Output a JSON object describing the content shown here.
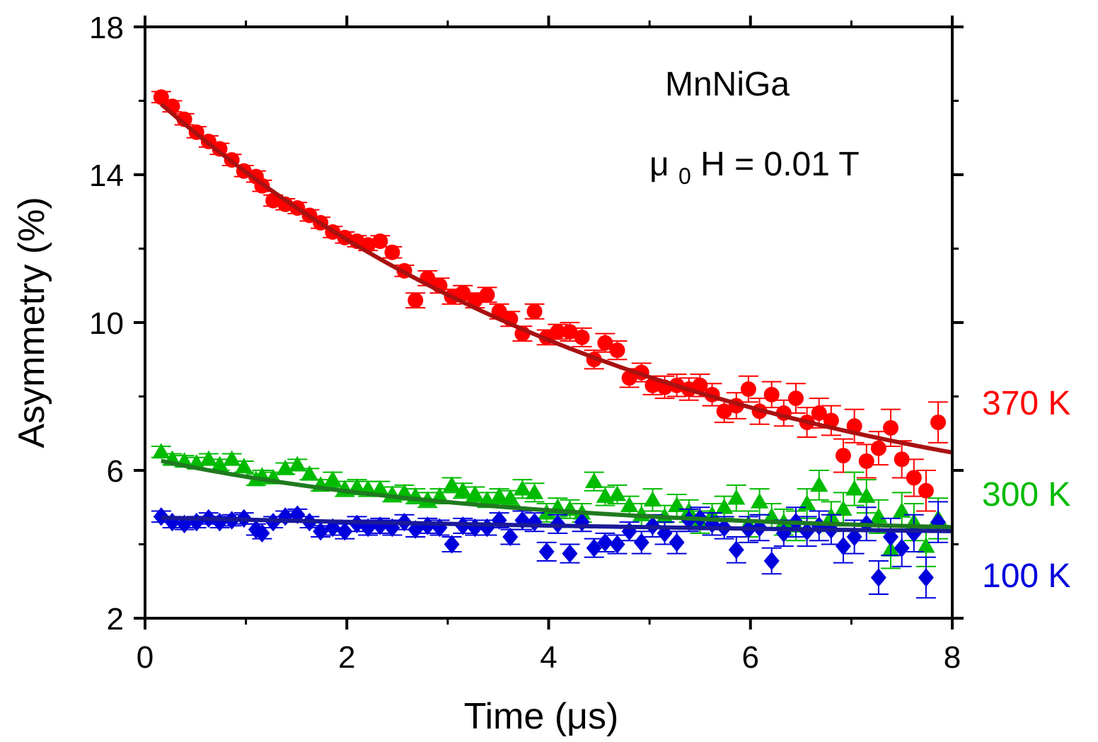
{
  "chart_data": {
    "type": "scatter",
    "title": "",
    "xlabel": "Time (μs)",
    "ylabel": "Asymmetry (%)",
    "xlim": [
      0,
      8
    ],
    "ylim": [
      2,
      18
    ],
    "xticks": [
      "0",
      "2",
      "4",
      "6",
      "8"
    ],
    "yticks": [
      "2",
      "6",
      "10",
      "14",
      "18"
    ],
    "grid": false,
    "annotations": {
      "sample": "MnNiGa",
      "field_prefix": "μ",
      "field_sub": "0",
      "field_suffix": "H = 0.01 T"
    },
    "series": [
      {
        "name": "370 K",
        "label": "370 K",
        "color": "#ff0000",
        "fit_color": "#aa1111",
        "marker": "circle",
        "fit": {
          "model": "y0 + A*exp(-x/tau)",
          "y0": 4.0,
          "A": 12.3,
          "tau": 5.0
        },
        "points": [
          [
            0.16,
            16.1,
            0.15
          ],
          [
            0.27,
            15.85,
            0.15
          ],
          [
            0.39,
            15.5,
            0.15
          ],
          [
            0.51,
            15.15,
            0.15
          ],
          [
            0.63,
            14.9,
            0.15
          ],
          [
            0.74,
            14.7,
            0.15
          ],
          [
            0.86,
            14.4,
            0.15
          ],
          [
            0.98,
            14.1,
            0.15
          ],
          [
            1.1,
            13.95,
            0.15
          ],
          [
            1.16,
            13.7,
            0.15
          ],
          [
            1.27,
            13.3,
            0.15
          ],
          [
            1.39,
            13.2,
            0.15
          ],
          [
            1.51,
            13.1,
            0.15
          ],
          [
            1.63,
            12.9,
            0.15
          ],
          [
            1.74,
            12.7,
            0.15
          ],
          [
            1.86,
            12.45,
            0.15
          ],
          [
            1.98,
            12.3,
            0.15
          ],
          [
            2.1,
            12.2,
            0.15
          ],
          [
            2.21,
            12.1,
            0.15
          ],
          [
            2.33,
            12.2,
            0.15
          ],
          [
            2.45,
            11.9,
            0.15
          ],
          [
            2.57,
            11.4,
            0.15
          ],
          [
            2.68,
            10.6,
            0.2
          ],
          [
            2.8,
            11.2,
            0.2
          ],
          [
            2.92,
            11.0,
            0.2
          ],
          [
            3.04,
            10.7,
            0.2
          ],
          [
            3.15,
            10.8,
            0.2
          ],
          [
            3.27,
            10.6,
            0.2
          ],
          [
            3.39,
            10.75,
            0.2
          ],
          [
            3.51,
            10.3,
            0.2
          ],
          [
            3.62,
            10.1,
            0.2
          ],
          [
            3.74,
            9.7,
            0.2
          ],
          [
            3.86,
            10.3,
            0.2
          ],
          [
            3.98,
            9.6,
            0.2
          ],
          [
            4.09,
            9.75,
            0.2
          ],
          [
            4.21,
            9.75,
            0.25
          ],
          [
            4.33,
            9.6,
            0.25
          ],
          [
            4.45,
            9.0,
            0.25
          ],
          [
            4.56,
            9.45,
            0.25
          ],
          [
            4.68,
            9.25,
            0.25
          ],
          [
            4.8,
            8.5,
            0.25
          ],
          [
            4.92,
            8.65,
            0.25
          ],
          [
            5.03,
            8.3,
            0.25
          ],
          [
            5.15,
            8.25,
            0.3
          ],
          [
            5.27,
            8.3,
            0.3
          ],
          [
            5.39,
            8.2,
            0.3
          ],
          [
            5.5,
            8.3,
            0.3
          ],
          [
            5.62,
            8.05,
            0.3
          ],
          [
            5.74,
            7.6,
            0.3
          ],
          [
            5.86,
            7.75,
            0.35
          ],
          [
            5.98,
            8.2,
            0.35
          ],
          [
            6.09,
            7.6,
            0.35
          ],
          [
            6.21,
            8.05,
            0.35
          ],
          [
            6.33,
            7.55,
            0.35
          ],
          [
            6.45,
            7.95,
            0.4
          ],
          [
            6.56,
            7.3,
            0.4
          ],
          [
            6.68,
            7.55,
            0.4
          ],
          [
            6.8,
            7.35,
            0.4
          ],
          [
            6.92,
            6.4,
            0.45
          ],
          [
            7.03,
            7.2,
            0.45
          ],
          [
            7.15,
            6.25,
            0.45
          ],
          [
            7.27,
            6.6,
            0.45
          ],
          [
            7.39,
            7.15,
            0.5
          ],
          [
            7.5,
            6.3,
            0.5
          ],
          [
            7.62,
            5.8,
            0.5
          ],
          [
            7.74,
            5.45,
            0.55
          ],
          [
            7.86,
            7.3,
            0.55
          ]
        ]
      },
      {
        "name": "300 K",
        "label": "300 K",
        "color": "#00bb00",
        "fit_color": "#1f7a1f",
        "marker": "triangle",
        "fit": {
          "model": "y0 + A*exp(-x/tau)",
          "y0": 4.25,
          "A": 2.1,
          "tau": 3.5
        },
        "points": [
          [
            0.16,
            6.5,
            0.15
          ],
          [
            0.27,
            6.3,
            0.15
          ],
          [
            0.39,
            6.25,
            0.15
          ],
          [
            0.51,
            6.2,
            0.15
          ],
          [
            0.63,
            6.3,
            0.15
          ],
          [
            0.74,
            6.15,
            0.15
          ],
          [
            0.86,
            6.3,
            0.15
          ],
          [
            0.98,
            6.1,
            0.15
          ],
          [
            1.1,
            5.75,
            0.15
          ],
          [
            1.16,
            5.85,
            0.15
          ],
          [
            1.27,
            5.8,
            0.15
          ],
          [
            1.39,
            6.05,
            0.15
          ],
          [
            1.51,
            6.15,
            0.15
          ],
          [
            1.63,
            5.9,
            0.15
          ],
          [
            1.74,
            5.6,
            0.15
          ],
          [
            1.86,
            5.75,
            0.2
          ],
          [
            1.98,
            5.5,
            0.2
          ],
          [
            2.1,
            5.55,
            0.2
          ],
          [
            2.21,
            5.5,
            0.2
          ],
          [
            2.33,
            5.5,
            0.2
          ],
          [
            2.45,
            5.35,
            0.2
          ],
          [
            2.57,
            5.4,
            0.2
          ],
          [
            2.68,
            5.3,
            0.2
          ],
          [
            2.8,
            5.2,
            0.2
          ],
          [
            2.92,
            5.3,
            0.2
          ],
          [
            3.04,
            5.6,
            0.2
          ],
          [
            3.15,
            5.45,
            0.2
          ],
          [
            3.27,
            5.35,
            0.2
          ],
          [
            3.39,
            5.2,
            0.2
          ],
          [
            3.51,
            5.3,
            0.2
          ],
          [
            3.62,
            5.25,
            0.2
          ],
          [
            3.74,
            5.5,
            0.25
          ],
          [
            3.86,
            5.4,
            0.25
          ],
          [
            3.98,
            4.85,
            0.25
          ],
          [
            4.09,
            5.0,
            0.25
          ],
          [
            4.21,
            4.95,
            0.25
          ],
          [
            4.33,
            4.85,
            0.25
          ],
          [
            4.45,
            5.7,
            0.25
          ],
          [
            4.56,
            5.3,
            0.25
          ],
          [
            4.68,
            5.35,
            0.25
          ],
          [
            4.8,
            5.05,
            0.25
          ],
          [
            4.92,
            4.8,
            0.3
          ],
          [
            5.03,
            5.2,
            0.3
          ],
          [
            5.15,
            4.75,
            0.3
          ],
          [
            5.27,
            5.05,
            0.3
          ],
          [
            5.39,
            4.9,
            0.3
          ],
          [
            5.5,
            4.6,
            0.3
          ],
          [
            5.62,
            4.8,
            0.3
          ],
          [
            5.74,
            5.0,
            0.3
          ],
          [
            5.86,
            5.25,
            0.35
          ],
          [
            5.98,
            4.55,
            0.35
          ],
          [
            6.09,
            5.15,
            0.35
          ],
          [
            6.21,
            4.75,
            0.35
          ],
          [
            6.33,
            4.6,
            0.35
          ],
          [
            6.45,
            4.5,
            0.4
          ],
          [
            6.56,
            5.1,
            0.4
          ],
          [
            6.68,
            5.6,
            0.4
          ],
          [
            6.8,
            4.75,
            0.4
          ],
          [
            6.92,
            4.95,
            0.45
          ],
          [
            7.03,
            5.5,
            0.45
          ],
          [
            7.15,
            5.3,
            0.45
          ],
          [
            7.27,
            4.75,
            0.45
          ],
          [
            7.39,
            3.85,
            0.5
          ],
          [
            7.5,
            4.9,
            0.5
          ],
          [
            7.62,
            4.6,
            0.5
          ],
          [
            7.74,
            3.95,
            0.55
          ],
          [
            7.86,
            4.7,
            0.55
          ]
        ]
      },
      {
        "name": "100 K",
        "label": "100 K",
        "color": "#0000dd",
        "fit_color": "#1a1a99",
        "marker": "diamond",
        "fit": {
          "model": "y0 + A*exp(-x/tau)",
          "y0": 4.05,
          "A": 0.68,
          "tau": 10.0
        },
        "points": [
          [
            0.16,
            4.75,
            0.15
          ],
          [
            0.27,
            4.6,
            0.15
          ],
          [
            0.39,
            4.55,
            0.15
          ],
          [
            0.51,
            4.6,
            0.15
          ],
          [
            0.63,
            4.7,
            0.15
          ],
          [
            0.74,
            4.6,
            0.15
          ],
          [
            0.86,
            4.65,
            0.15
          ],
          [
            0.98,
            4.7,
            0.15
          ],
          [
            1.1,
            4.4,
            0.15
          ],
          [
            1.16,
            4.3,
            0.15
          ],
          [
            1.27,
            4.6,
            0.15
          ],
          [
            1.39,
            4.75,
            0.15
          ],
          [
            1.51,
            4.8,
            0.15
          ],
          [
            1.63,
            4.6,
            0.15
          ],
          [
            1.74,
            4.35,
            0.15
          ],
          [
            1.86,
            4.45,
            0.2
          ],
          [
            1.98,
            4.35,
            0.2
          ],
          [
            2.1,
            4.55,
            0.2
          ],
          [
            2.21,
            4.45,
            0.2
          ],
          [
            2.33,
            4.5,
            0.2
          ],
          [
            2.45,
            4.45,
            0.2
          ],
          [
            2.57,
            4.6,
            0.2
          ],
          [
            2.68,
            4.4,
            0.2
          ],
          [
            2.8,
            4.5,
            0.2
          ],
          [
            2.92,
            4.45,
            0.2
          ],
          [
            3.04,
            4.0,
            0.2
          ],
          [
            3.15,
            4.5,
            0.2
          ],
          [
            3.27,
            4.45,
            0.2
          ],
          [
            3.39,
            4.45,
            0.2
          ],
          [
            3.51,
            4.65,
            0.2
          ],
          [
            3.62,
            4.2,
            0.2
          ],
          [
            3.74,
            4.65,
            0.25
          ],
          [
            3.86,
            4.6,
            0.25
          ],
          [
            3.98,
            3.8,
            0.25
          ],
          [
            4.09,
            4.55,
            0.25
          ],
          [
            4.21,
            3.75,
            0.25
          ],
          [
            4.33,
            4.6,
            0.25
          ],
          [
            4.45,
            3.9,
            0.25
          ],
          [
            4.56,
            4.05,
            0.25
          ],
          [
            4.68,
            4.0,
            0.25
          ],
          [
            4.8,
            4.35,
            0.25
          ],
          [
            4.92,
            4.05,
            0.3
          ],
          [
            5.03,
            4.5,
            0.3
          ],
          [
            5.15,
            4.3,
            0.3
          ],
          [
            5.27,
            4.05,
            0.3
          ],
          [
            5.39,
            4.65,
            0.3
          ],
          [
            5.5,
            4.7,
            0.3
          ],
          [
            5.62,
            4.55,
            0.3
          ],
          [
            5.74,
            4.45,
            0.3
          ],
          [
            5.86,
            3.85,
            0.35
          ],
          [
            5.98,
            4.4,
            0.35
          ],
          [
            6.09,
            4.45,
            0.35
          ],
          [
            6.21,
            3.55,
            0.35
          ],
          [
            6.33,
            4.3,
            0.35
          ],
          [
            6.45,
            4.6,
            0.4
          ],
          [
            6.56,
            4.35,
            0.4
          ],
          [
            6.68,
            4.5,
            0.4
          ],
          [
            6.8,
            4.4,
            0.4
          ],
          [
            6.92,
            3.95,
            0.45
          ],
          [
            7.03,
            4.2,
            0.45
          ],
          [
            7.15,
            4.55,
            0.45
          ],
          [
            7.27,
            3.1,
            0.45
          ],
          [
            7.39,
            4.2,
            0.5
          ],
          [
            7.5,
            3.9,
            0.5
          ],
          [
            7.62,
            4.3,
            0.5
          ],
          [
            7.74,
            3.1,
            0.55
          ],
          [
            7.86,
            4.6,
            0.55
          ]
        ]
      }
    ]
  }
}
